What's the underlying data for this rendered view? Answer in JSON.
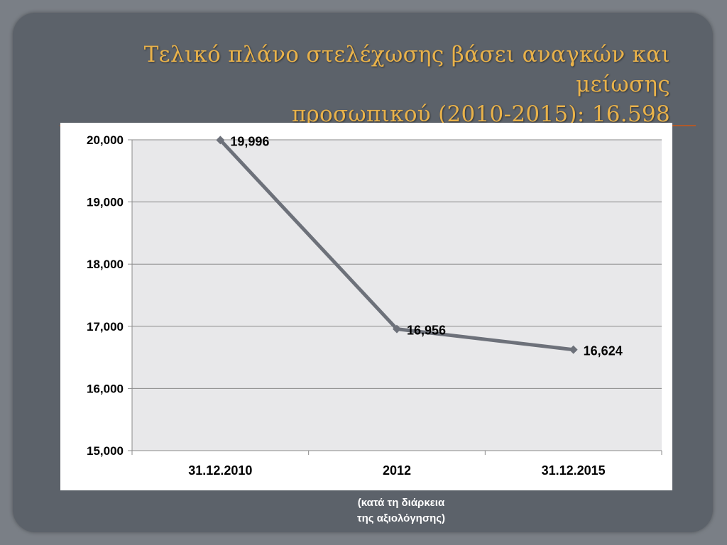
{
  "slide": {
    "title_line1": "Τελικό πλάνο στελέχωσης βάσει αναγκών και μείωσης",
    "title_line2": "προσωπικού (2010-2015): 16.598",
    "note_line1": "(κατά τη διάρκεια",
    "note_line2": "της αξιολόγησης)"
  },
  "colors": {
    "background": "#5c626a",
    "title": "#e9b24a",
    "rule": "#b05a2a",
    "plot_area": "#e8e8ea",
    "line": "#6d717a"
  },
  "chart_data": {
    "type": "line",
    "categories": [
      "31.12.2010",
      "2012",
      "31.12.2015"
    ],
    "series": [
      {
        "values": [
          19996,
          16956,
          16624
        ],
        "labels": [
          "19,996",
          "16,956",
          "16,624"
        ]
      }
    ],
    "y_ticks": [
      "15,000",
      "16,000",
      "17,000",
      "18,000",
      "19,000",
      "20,000"
    ],
    "ylim": [
      15000,
      20000
    ],
    "grid": true,
    "legend": "none",
    "title": "",
    "xlabel": "",
    "ylabel": ""
  }
}
